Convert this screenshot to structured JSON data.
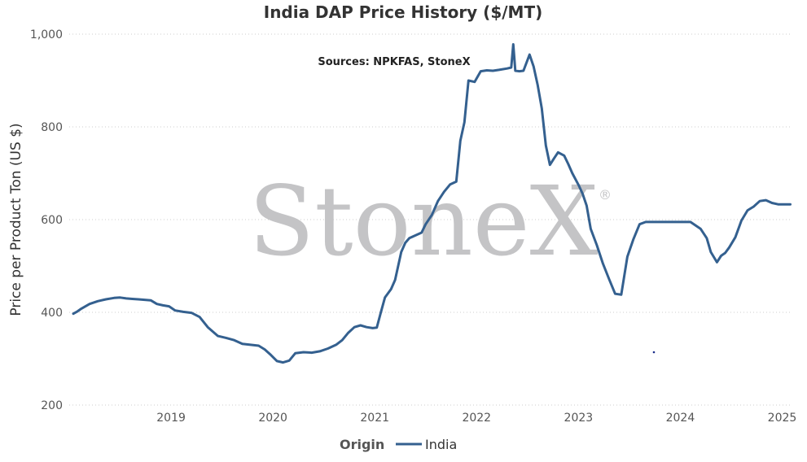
{
  "chart_data": {
    "type": "line",
    "title": "India DAP Price History ($/MT)",
    "source_note": "Sources: NPKFAS, StoneX",
    "watermark": "StoneX",
    "watermark_mark": "®",
    "xlabel": "",
    "ylabel": "Price per Product Ton (US $)",
    "ylim": [
      200,
      1000
    ],
    "xlim": [
      2018.0,
      2025.1
    ],
    "yticks": [
      200,
      400,
      600,
      800,
      1000
    ],
    "ytick_labels": [
      "200",
      "400",
      "600",
      "800",
      "1,000"
    ],
    "xticks": [
      2019,
      2020,
      2021,
      2022,
      2023,
      2024,
      2025
    ],
    "xtick_labels": [
      "2019",
      "2020",
      "2021",
      "2022",
      "2023",
      "2024",
      "2025"
    ],
    "grid": "horizontal dotted",
    "legend": {
      "title": "Origin",
      "position": "bottom-center"
    },
    "colors": {
      "series": "#34608f",
      "grid": "#cccccc",
      "watermark": "#c4c4c6"
    },
    "series": [
      {
        "name": "India",
        "x": [
          2018.04,
          2018.08,
          2018.12,
          2018.2,
          2018.28,
          2018.36,
          2018.44,
          2018.5,
          2018.56,
          2018.62,
          2018.68,
          2018.74,
          2018.8,
          2018.86,
          2018.92,
          2018.98,
          2019.04,
          2019.12,
          2019.2,
          2019.28,
          2019.36,
          2019.46,
          2019.54,
          2019.62,
          2019.7,
          2019.78,
          2019.86,
          2019.92,
          2019.98,
          2020.04,
          2020.1,
          2020.16,
          2020.22,
          2020.3,
          2020.38,
          2020.46,
          2020.54,
          2020.62,
          2020.68,
          2020.74,
          2020.8,
          2020.86,
          2020.92,
          2020.98,
          2021.02,
          2021.06,
          2021.1,
          2021.16,
          2021.2,
          2021.26,
          2021.3,
          2021.34,
          2021.4,
          2021.46,
          2021.5,
          2021.56,
          2021.62,
          2021.68,
          2021.74,
          2021.8,
          2021.84,
          2021.88,
          2021.92,
          2021.98,
          2022.04,
          2022.1,
          2022.16,
          2022.22,
          2022.3,
          2022.34,
          2022.36,
          2022.38,
          2022.42,
          2022.46,
          2022.52,
          2022.56,
          2022.6,
          2022.64,
          2022.68,
          2022.72,
          2022.76,
          2022.8,
          2022.86,
          2022.9,
          2022.94,
          2023.0,
          2023.04,
          2023.08,
          2023.12,
          2023.18,
          2023.24,
          2023.3,
          2023.36,
          2023.42,
          2023.48,
          2023.54,
          2023.6,
          2023.66,
          2023.72,
          2023.8,
          2023.9,
          2024.0,
          2024.1,
          2024.2,
          2024.26,
          2024.3,
          2024.36,
          2024.4,
          2024.44,
          2024.48,
          2024.54,
          2024.6,
          2024.66,
          2024.72,
          2024.78,
          2024.84,
          2024.9,
          2024.96,
          2025.02,
          2025.08
        ],
        "values": [
          397,
          402,
          408,
          418,
          424,
          428,
          431,
          432,
          430,
          429,
          428,
          427,
          426,
          418,
          415,
          413,
          404,
          401,
          399,
          390,
          368,
          349,
          345,
          340,
          332,
          330,
          328,
          320,
          308,
          295,
          292,
          296,
          312,
          314,
          313,
          316,
          322,
          330,
          340,
          356,
          368,
          372,
          368,
          366,
          367,
          400,
          432,
          450,
          470,
          530,
          550,
          560,
          566,
          572,
          590,
          610,
          640,
          660,
          676,
          682,
          770,
          810,
          900,
          897,
          920,
          922,
          921,
          923,
          926,
          928,
          978,
          921,
          920,
          921,
          956,
          930,
          890,
          840,
          760,
          718,
          732,
          745,
          738,
          720,
          700,
          675,
          656,
          630,
          580,
          545,
          505,
          472,
          440,
          438,
          520,
          558,
          590,
          595,
          595,
          595,
          595,
          595,
          595,
          580,
          560,
          530,
          508,
          522,
          528,
          540,
          562,
          598,
          620,
          628,
          640,
          642,
          636,
          633,
          633,
          633
        ]
      }
    ]
  }
}
